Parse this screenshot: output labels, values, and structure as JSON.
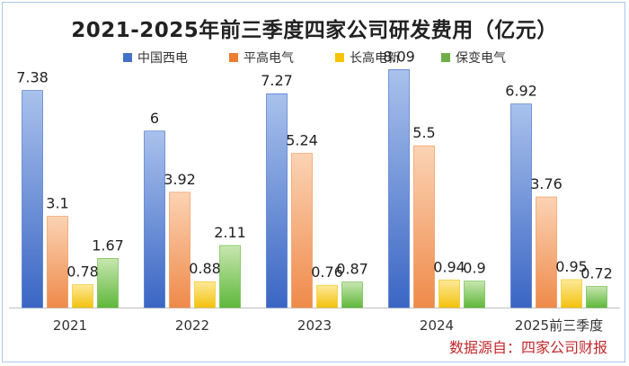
{
  "chart_data": {
    "type": "bar",
    "title": "2021-2025年前三季度四家公司研发费用（亿元）",
    "categories": [
      "2021",
      "2022",
      "2023",
      "2024",
      "2025前三季度"
    ],
    "series": [
      {
        "name": "中国西电",
        "values": [
          7.38,
          6,
          7.27,
          8.09,
          6.92
        ],
        "color_top": "#a9c1ec",
        "color_bottom": "#3a66c4"
      },
      {
        "name": "平高电气",
        "values": [
          3.1,
          3.92,
          5.24,
          5.5,
          3.76
        ],
        "color_top": "#fbd3b4",
        "color_bottom": "#ef8a4a"
      },
      {
        "name": "长高电新",
        "values": [
          0.78,
          0.88,
          0.76,
          0.94,
          0.95
        ],
        "color_top": "#fde99a",
        "color_bottom": "#f3c20e"
      },
      {
        "name": "保变电气",
        "values": [
          1.67,
          2.11,
          0.87,
          0.9,
          0.72
        ],
        "color_top": "#c8e6b0",
        "color_bottom": "#5fb83b"
      }
    ],
    "value_labels": [
      [
        "7.38",
        "6",
        "7.27",
        "8.09",
        "6.92"
      ],
      [
        "3.1",
        "3.92",
        "5.24",
        "5.5",
        "3.76"
      ],
      [
        "0.78",
        "0.88",
        "0.76",
        "0.94",
        "0.95"
      ],
      [
        "1.67",
        "2.11",
        "0.87",
        "0.9",
        "0.72"
      ]
    ],
    "ylim": [
      0,
      8.5
    ],
    "xlabel": "",
    "ylabel": "",
    "grid": false,
    "legend_position": "top"
  },
  "source": "数据源自：四家公司财报"
}
